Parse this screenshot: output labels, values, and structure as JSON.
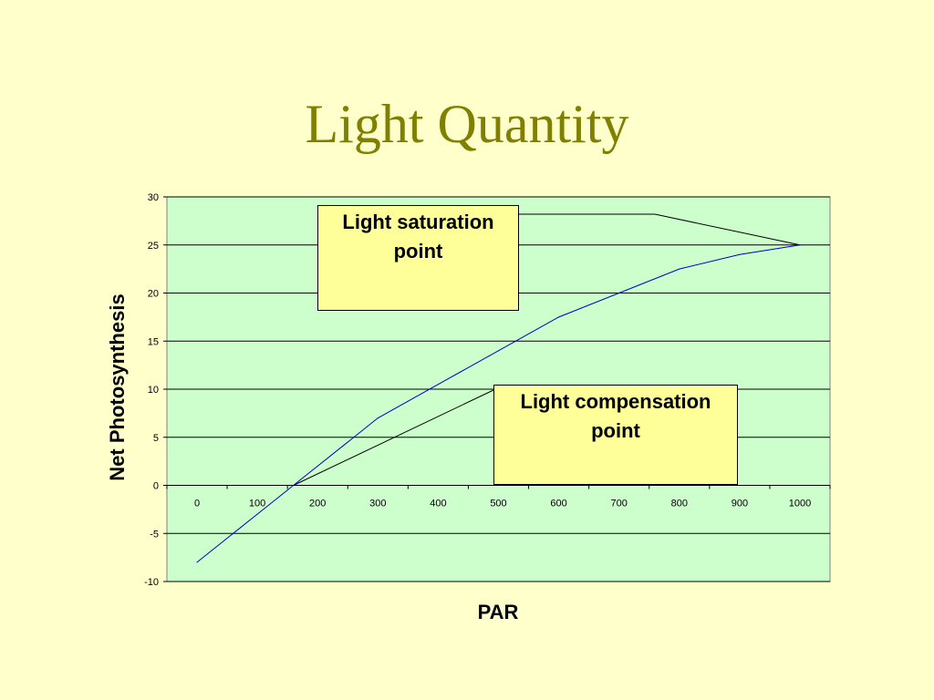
{
  "slide": {
    "title": "Light Quantity"
  },
  "colors": {
    "background": "#FFFFCC",
    "title": "#808000",
    "plot_area": "#CCFFCC",
    "series_line": "#0000CC",
    "callout_fill": "#FFFF99"
  },
  "chart_data": {
    "type": "line",
    "title": "",
    "xlabel": "PAR",
    "ylabel": "Net Photosynthesis",
    "xlim": [
      0,
      1000
    ],
    "ylim": [
      -10,
      30
    ],
    "x_ticks": [
      "0",
      "100",
      "200",
      "300",
      "400",
      "500",
      "600",
      "700",
      "800",
      "900",
      "1000"
    ],
    "y_ticks": [
      "30",
      "25",
      "20",
      "15",
      "10",
      "5",
      "0",
      "-5",
      "-10"
    ],
    "grid": "horizontal",
    "legend": "none",
    "series": [
      {
        "x": [
          0,
          100,
          200,
          300,
          400,
          500,
          600,
          700,
          800,
          900,
          1000
        ],
        "y": [
          -8,
          -3,
          2,
          7,
          10.5,
          14,
          17.5,
          20,
          22.5,
          24,
          25
        ]
      }
    ],
    "annotations": [
      {
        "line1": "Light saturation",
        "line2": "point"
      },
      {
        "line1": "Light compensation",
        "line2": "point"
      }
    ]
  }
}
